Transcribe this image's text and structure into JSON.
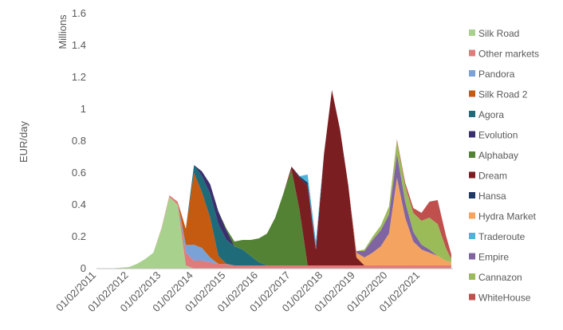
{
  "chart_data": {
    "type": "area",
    "stacked": true,
    "title": "",
    "xlabel": "",
    "ylabel": "EUR/day",
    "y_units_label": "Millions",
    "ylim": [
      0,
      1.6
    ],
    "yticks": [
      "0",
      "0.2",
      "0.4",
      "0.6",
      "0.8",
      "1",
      "1.2",
      "1.4",
      "1.6"
    ],
    "xticks": [
      "01/02/2011",
      "01/02/2012",
      "01/02/2013",
      "01/02/2014",
      "01/02/2015",
      "01/02/2016",
      "01/02/2017",
      "01/02/2018",
      "01/02/2019",
      "01/02/2020",
      "01/02/2021"
    ],
    "grid": false,
    "legend_position": "right",
    "x": [
      "2011-02-01",
      "2011-08-01",
      "2012-02-01",
      "2012-05-01",
      "2012-08-01",
      "2012-11-01",
      "2013-02-01",
      "2013-05-01",
      "2013-08-01",
      "2013-11-01",
      "2014-02-01",
      "2014-05-01",
      "2014-08-01",
      "2014-11-01",
      "2015-02-01",
      "2015-05-01",
      "2015-08-01",
      "2015-11-01",
      "2016-02-01",
      "2016-05-01",
      "2016-08-01",
      "2016-11-01",
      "2017-02-01",
      "2017-05-01",
      "2017-08-01",
      "2017-11-01",
      "2018-02-01",
      "2018-05-01",
      "2018-08-01",
      "2018-11-01",
      "2019-02-01",
      "2019-05-01",
      "2019-08-01",
      "2019-11-01",
      "2020-02-01",
      "2020-05-01",
      "2020-08-01",
      "2020-11-01",
      "2021-02-01",
      "2021-05-01",
      "2021-08-01",
      "2021-11-01",
      "2022-01-01"
    ],
    "series": [
      {
        "name": "Silk Road",
        "color": "#a9d18e",
        "values": [
          0,
          0.002,
          0.01,
          0.03,
          0.06,
          0.1,
          0.25,
          0.45,
          0.4,
          0.02,
          0,
          0,
          0,
          0,
          0,
          0,
          0,
          0,
          0,
          0,
          0,
          0,
          0,
          0,
          0,
          0,
          0,
          0,
          0,
          0,
          0,
          0,
          0,
          0,
          0,
          0,
          0,
          0,
          0,
          0,
          0,
          0,
          0
        ]
      },
      {
        "name": "Other markets",
        "color": "#e07b7b",
        "values": [
          0,
          0,
          0,
          0,
          0,
          0,
          0.005,
          0.01,
          0.02,
          0.08,
          0.05,
          0.05,
          0.04,
          0.03,
          0.03,
          0.02,
          0.02,
          0.02,
          0.02,
          0.02,
          0.02,
          0.02,
          0.02,
          0.02,
          0.02,
          0.02,
          0.02,
          0.02,
          0.02,
          0.02,
          0.02,
          0.02,
          0.02,
          0.02,
          0.02,
          0.02,
          0.02,
          0.02,
          0.02,
          0.02,
          0.02,
          0.02,
          0.02
        ]
      },
      {
        "name": "Pandora",
        "color": "#7aa2d6",
        "values": [
          0,
          0,
          0,
          0,
          0,
          0,
          0,
          0,
          0,
          0.05,
          0.1,
          0.08,
          0.03,
          0,
          0,
          0,
          0,
          0,
          0,
          0,
          0,
          0,
          0,
          0,
          0,
          0,
          0,
          0,
          0,
          0,
          0,
          0,
          0,
          0,
          0,
          0,
          0,
          0,
          0,
          0,
          0,
          0,
          0
        ]
      },
      {
        "name": "Silk Road 2",
        "color": "#c55a11",
        "values": [
          0,
          0,
          0,
          0,
          0,
          0,
          0,
          0,
          0,
          0.1,
          0.45,
          0.35,
          0.25,
          0.05,
          0,
          0,
          0,
          0,
          0,
          0,
          0,
          0,
          0,
          0,
          0,
          0,
          0,
          0,
          0,
          0,
          0,
          0,
          0,
          0,
          0,
          0,
          0,
          0,
          0,
          0,
          0,
          0,
          0
        ]
      },
      {
        "name": "Agora",
        "color": "#1f6b7a",
        "values": [
          0,
          0,
          0,
          0,
          0,
          0,
          0,
          0,
          0,
          0,
          0.05,
          0.1,
          0.15,
          0.2,
          0.15,
          0.12,
          0.1,
          0.06,
          0.02,
          0,
          0,
          0,
          0,
          0,
          0,
          0,
          0,
          0,
          0,
          0,
          0,
          0,
          0,
          0,
          0,
          0,
          0,
          0,
          0,
          0,
          0,
          0,
          0
        ]
      },
      {
        "name": "Evolution",
        "color": "#3c2f6e",
        "values": [
          0,
          0,
          0,
          0,
          0,
          0,
          0,
          0,
          0,
          0,
          0,
          0.03,
          0.06,
          0.08,
          0.06,
          0,
          0,
          0,
          0,
          0,
          0,
          0,
          0,
          0,
          0,
          0,
          0,
          0,
          0,
          0,
          0,
          0,
          0,
          0,
          0,
          0,
          0,
          0,
          0,
          0,
          0,
          0,
          0
        ]
      },
      {
        "name": "Alphabay",
        "color": "#548235",
        "values": [
          0,
          0,
          0,
          0,
          0,
          0,
          0,
          0,
          0,
          0,
          0,
          0,
          0,
          0,
          0.01,
          0.03,
          0.06,
          0.1,
          0.15,
          0.2,
          0.3,
          0.45,
          0.6,
          0.35,
          0,
          0,
          0,
          0,
          0,
          0,
          0,
          0,
          0,
          0,
          0,
          0,
          0,
          0,
          0,
          0,
          0,
          0,
          0
        ]
      },
      {
        "name": "Dream",
        "color": "#7b1e22",
        "values": [
          0,
          0,
          0,
          0,
          0,
          0,
          0,
          0,
          0,
          0,
          0,
          0,
          0,
          0,
          0,
          0,
          0,
          0,
          0,
          0,
          0,
          0,
          0.02,
          0.2,
          0.5,
          0.1,
          0.7,
          1.1,
          0.85,
          0.5,
          0.05,
          0,
          0,
          0,
          0,
          0,
          0,
          0,
          0,
          0,
          0,
          0,
          0
        ]
      },
      {
        "name": "Hansa",
        "color": "#1f3864",
        "values": [
          0,
          0,
          0,
          0,
          0,
          0,
          0,
          0,
          0,
          0,
          0,
          0,
          0,
          0,
          0,
          0,
          0,
          0,
          0,
          0,
          0,
          0,
          0,
          0.01,
          0.02,
          0,
          0,
          0,
          0,
          0,
          0,
          0,
          0,
          0,
          0,
          0,
          0,
          0,
          0,
          0,
          0,
          0,
          0
        ]
      },
      {
        "name": "Hydra Market",
        "color": "#f4a460",
        "values": [
          0,
          0,
          0,
          0,
          0,
          0,
          0,
          0,
          0,
          0,
          0,
          0,
          0,
          0,
          0,
          0,
          0,
          0,
          0,
          0,
          0,
          0,
          0,
          0,
          0,
          0,
          0,
          0,
          0,
          0,
          0.03,
          0.05,
          0.08,
          0.12,
          0.2,
          0.55,
          0.3,
          0.15,
          0.1,
          0.08,
          0.06,
          0.03,
          0.02
        ]
      },
      {
        "name": "Traderoute",
        "color": "#4fb3d9",
        "values": [
          0,
          0,
          0,
          0,
          0,
          0,
          0,
          0,
          0,
          0,
          0,
          0,
          0,
          0,
          0,
          0,
          0,
          0,
          0,
          0,
          0,
          0,
          0,
          0,
          0.05,
          0.05,
          0,
          0,
          0,
          0,
          0,
          0,
          0,
          0,
          0,
          0,
          0,
          0,
          0,
          0,
          0,
          0,
          0
        ]
      },
      {
        "name": "Empire",
        "color": "#8064a2",
        "values": [
          0,
          0,
          0,
          0,
          0,
          0,
          0,
          0,
          0,
          0,
          0,
          0,
          0,
          0,
          0,
          0,
          0,
          0,
          0,
          0,
          0,
          0,
          0,
          0,
          0,
          0,
          0,
          0,
          0,
          0,
          0.01,
          0.04,
          0.08,
          0.1,
          0.12,
          0.15,
          0.1,
          0.06,
          0.03,
          0.02,
          0,
          0,
          0
        ]
      },
      {
        "name": "Cannazon",
        "color": "#9bbb59",
        "values": [
          0,
          0,
          0,
          0,
          0,
          0,
          0,
          0,
          0,
          0,
          0,
          0,
          0,
          0,
          0,
          0,
          0,
          0,
          0,
          0,
          0,
          0,
          0,
          0,
          0,
          0,
          0,
          0,
          0,
          0,
          0,
          0.01,
          0.02,
          0.03,
          0.05,
          0.08,
          0.1,
          0.12,
          0.15,
          0.2,
          0.2,
          0.08,
          0.02
        ]
      },
      {
        "name": "WhiteHouse",
        "color": "#c0504d",
        "values": [
          0,
          0,
          0,
          0,
          0,
          0,
          0,
          0,
          0,
          0,
          0,
          0,
          0,
          0,
          0,
          0,
          0,
          0,
          0,
          0,
          0,
          0,
          0,
          0,
          0,
          0,
          0,
          0,
          0,
          0,
          0,
          0,
          0,
          0,
          0,
          0.01,
          0.02,
          0.03,
          0.05,
          0.1,
          0.15,
          0.08,
          0.03
        ]
      }
    ]
  }
}
